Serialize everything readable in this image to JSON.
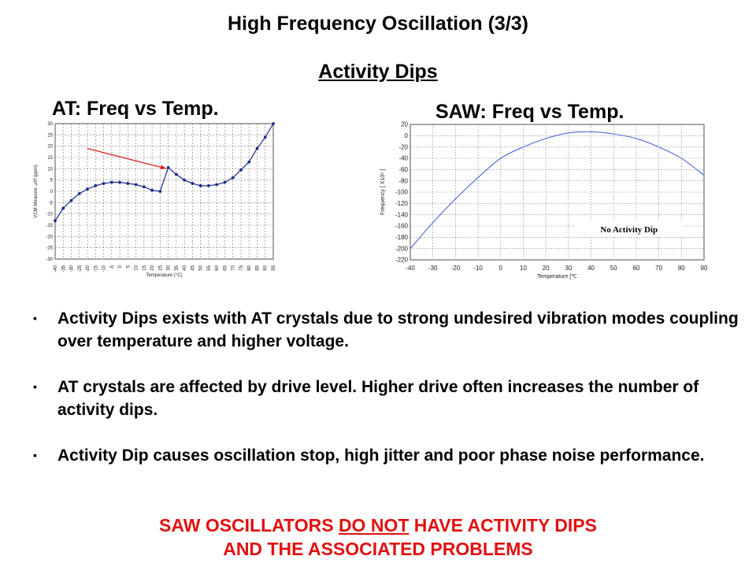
{
  "slide": {
    "title": "High Frequency Oscillation (3/3)",
    "subtitle": "Activity Dips"
  },
  "bullets": [
    "Activity Dips exists with AT crystals due to strong undesired vibration modes coupling over temperature and higher voltage.",
    "AT crystals are affected by drive level. Higher drive often increases the number of activity dips.",
    "Activity Dip causes oscillation stop, high jitter and poor phase noise performance."
  ],
  "footer": {
    "line1_pre": "SAW OSCILLATORS ",
    "line1_emph": "DO NOT",
    "line1_post": " HAVE ACTIVITY DIPS",
    "line2": "AND THE ASSOCIATED PROBLEMS"
  },
  "colors": {
    "accent_red": "#e11010",
    "at_line": "#1a2a8a",
    "saw_line": "#3b55d6",
    "grid": "#777777"
  },
  "chart_data": [
    {
      "type": "line",
      "title": "AT:  Freq vs Temp.",
      "xlabel": "Temperature (°C)",
      "ylabel": "VCM Measure ⊿f/f (ppm)",
      "xlim": [
        -40,
        95
      ],
      "ylim": [
        -30,
        30
      ],
      "x_ticks": [
        -40,
        -35,
        -30,
        -25,
        -20,
        -15,
        -10,
        -5,
        0,
        5,
        10,
        15,
        20,
        25,
        30,
        35,
        40,
        45,
        50,
        55,
        60,
        65,
        70,
        75,
        80,
        85,
        90,
        95
      ],
      "y_ticks": [
        -30,
        -25,
        -20,
        -15,
        -10,
        -5,
        0,
        5,
        10,
        15,
        20,
        25,
        30
      ],
      "grid": true,
      "series": [
        {
          "x": [
            -40,
            -35,
            -30,
            -25,
            -20,
            -15,
            -10,
            -5,
            0,
            5,
            10,
            15,
            20,
            25,
            30,
            35,
            40,
            45,
            50,
            55,
            60,
            65,
            70,
            75,
            80,
            85,
            90,
            95
          ],
          "y": [
            -13,
            -7.5,
            -4,
            -1,
            1,
            2.5,
            3.5,
            4,
            4,
            3.5,
            3,
            2,
            0.5,
            0,
            10.5,
            7.5,
            5,
            3.5,
            2.5,
            2.5,
            3,
            4,
            6,
            9.5,
            13,
            19,
            24,
            30
          ],
          "markers": true
        }
      ],
      "annotation": {
        "type": "arrow",
        "color": "#e11010",
        "from": [
          -20,
          19
        ],
        "to": [
          30,
          10.5
        ]
      }
    },
    {
      "type": "line",
      "title": "SAW:  Freq vs Temp.",
      "xlabel": "Temperature [℃",
      "ylabel": "Frequency [ X10⁶ ]",
      "xlim": [
        -40,
        90
      ],
      "ylim": [
        -220,
        20
      ],
      "x_ticks": [
        -40,
        -30,
        -20,
        -10,
        0,
        10,
        20,
        30,
        40,
        50,
        60,
        70,
        80,
        90
      ],
      "y_ticks": [
        20,
        0,
        -20,
        -40,
        -60,
        -80,
        -100,
        -120,
        -140,
        -160,
        -180,
        -200,
        -220
      ],
      "grid": true,
      "series": [
        {
          "x": [
            -40,
            -30,
            -20,
            -10,
            0,
            10,
            20,
            30,
            40,
            50,
            60,
            70,
            80,
            90
          ],
          "y": [
            -200,
            -154,
            -112,
            -74,
            -40,
            -20,
            -5,
            5,
            7,
            3,
            -5,
            -20,
            -40,
            -70
          ],
          "markers": false
        }
      ],
      "annotation_text": "No Activity Dip"
    }
  ]
}
